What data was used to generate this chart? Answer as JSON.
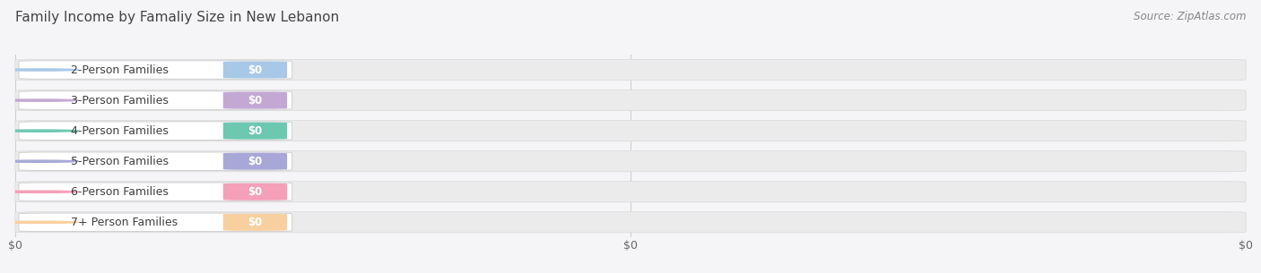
{
  "title": "Family Income by Famaliy Size in New Lebanon",
  "source": "Source: ZipAtlas.com",
  "categories": [
    "2-Person Families",
    "3-Person Families",
    "4-Person Families",
    "5-Person Families",
    "6-Person Families",
    "7+ Person Families"
  ],
  "values": [
    0,
    0,
    0,
    0,
    0,
    0
  ],
  "bar_colors": [
    "#a8c8e8",
    "#c4a8d4",
    "#6dc8b0",
    "#a8a8d8",
    "#f4a0b8",
    "#f8d0a0"
  ],
  "bg_color": "#f5f5f7",
  "bar_bg_color": "#ebebeb",
  "title_fontsize": 11,
  "source_fontsize": 8.5,
  "label_fontsize": 9,
  "value_fontsize": 8.5,
  "xtick_labels": [
    "$0",
    "$0",
    "$0"
  ],
  "xtick_positions": [
    0.0,
    0.5,
    1.0
  ]
}
